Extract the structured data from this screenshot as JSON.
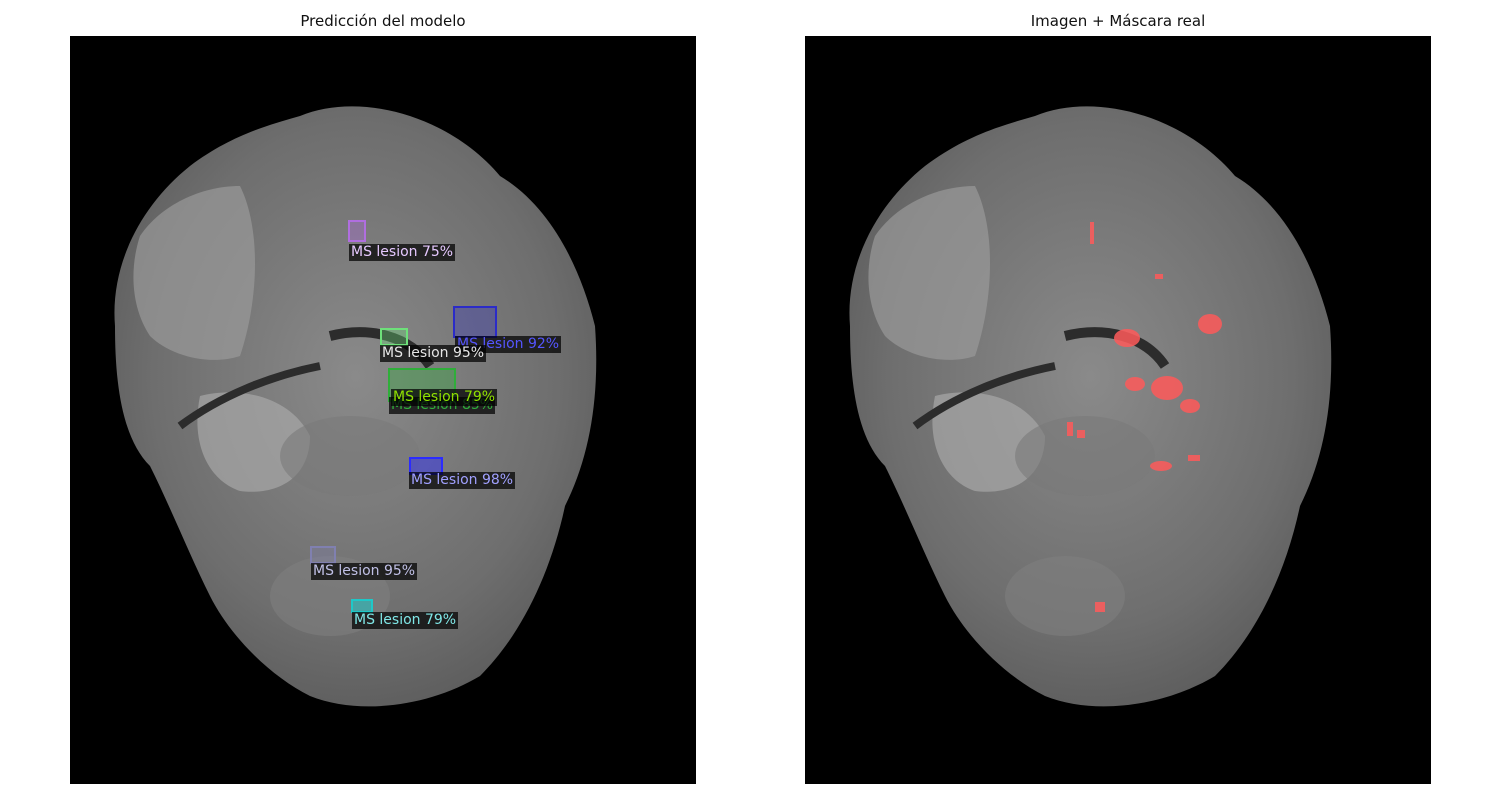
{
  "left_panel": {
    "title": "Predicción del modelo",
    "detections": [
      {
        "label": "MS lesion 75%",
        "color": "#b06ee0"
      },
      {
        "label": "MS lesion 92%",
        "color": "#2b2bc8"
      },
      {
        "label": "MS lesion 95%",
        "color": "#e6e6e6"
      },
      {
        "label": "MS lesion 79%",
        "color": "#8fe000"
      },
      {
        "label": "MS lesion 85%",
        "color": "#2fae3a"
      },
      {
        "label": "MS lesion 98%",
        "color": "#a0a0ff"
      },
      {
        "label": "MS lesion 95%",
        "color": "#c0c0e6"
      },
      {
        "label": "MS lesion 79%",
        "color": "#7fe6e6"
      }
    ]
  },
  "right_panel": {
    "title": "Imagen + Máscara real",
    "mask_color": "#ff5a5a"
  }
}
